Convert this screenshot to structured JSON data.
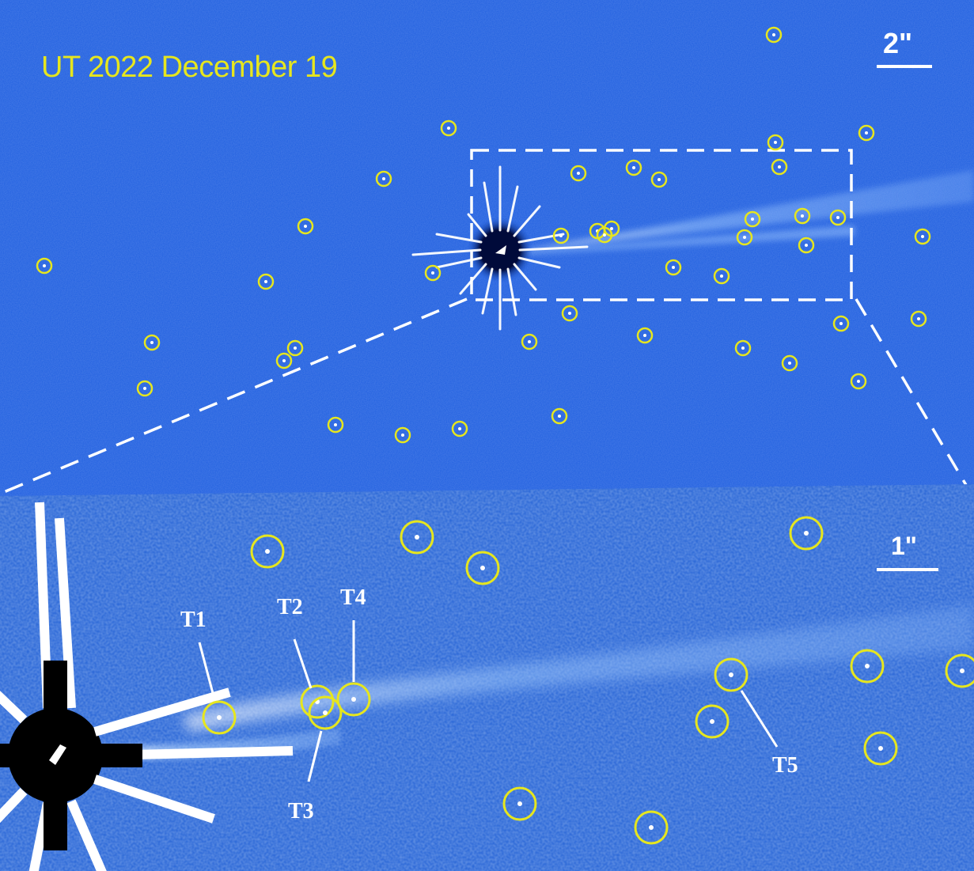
{
  "title": "UT 2022 December 19",
  "scale_top": "2\"",
  "scale_bottom": "1\"",
  "labels": {
    "t1": "T1",
    "t2": "T2",
    "t3": "T3",
    "t4": "T4",
    "t5": "T5"
  },
  "colors": {
    "background": "#1e5ee0",
    "inset_background": "#2563d6",
    "circle": "#e6e61e",
    "text": "#ffffff"
  }
}
